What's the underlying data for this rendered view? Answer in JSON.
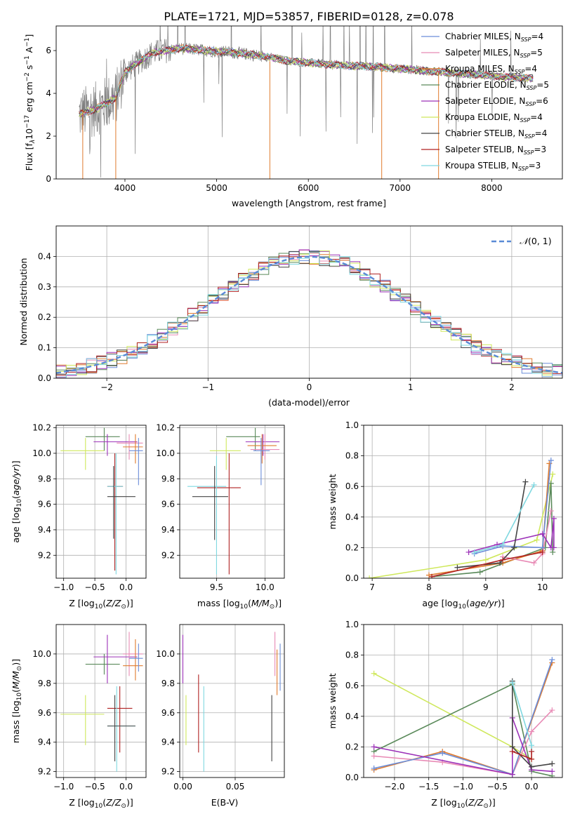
{
  "figure": {
    "title": "PLATE=1721, MJD=53857, FIBERID=0128, z=0.078"
  },
  "colors": {
    "Chabrier MILES": "#6a8dd9",
    "Salpeter MILES": "#e88ab5",
    "Kroupa MILES": "#e07b2e",
    "Chabrier ELODIE": "#5a8a5a",
    "Salpeter ELODIE": "#9c31b8",
    "Kroupa ELODIE": "#cfe85c",
    "Chabrier STELIB": "#444444",
    "Salpeter STELIB": "#b02222",
    "Kroupa STELIB": "#7fd8e0",
    "observed": "#808080"
  },
  "chart_data": [
    {
      "id": "spectrum",
      "type": "line",
      "xlabel": "wavelength [Angstrom, rest frame]",
      "ylabel": "Flux [f_λ 10^-17 erg cm^-2 s^-1 A^-1]",
      "xlim": [
        3250,
        8770
      ],
      "ylim": [
        0,
        7.15
      ],
      "xticks": [
        4000,
        5000,
        6000,
        7000,
        8000
      ],
      "yticks": [
        0,
        2,
        4,
        6
      ],
      "grid": false,
      "legend_position": "top-right",
      "legend": [
        "Chabrier MILES, N_SSP=4",
        "Salpeter MILES, N_SSP=5",
        "Kroupa MILES, N_SSP=4",
        "Chabrier ELODIE, N_SSP=5",
        "Salpeter ELODIE, N_SSP=6",
        "Kroupa ELODIE, N_SSP=4",
        "Chabrier STELIB, N_SSP=4",
        "Salpeter STELIB, N_SSP=3",
        "Kroupa STELIB, N_SSP=3"
      ],
      "continuum": {
        "x": [
          3500,
          3700,
          3900,
          4000,
          4300,
          4600,
          4900,
          5200,
          5500,
          5800,
          6100,
          6400,
          6700,
          7000,
          7300,
          7600,
          7900,
          8200,
          8450
        ],
        "y": [
          3.0,
          3.3,
          3.8,
          5.0,
          5.9,
          6.1,
          6.0,
          5.9,
          5.75,
          5.5,
          5.4,
          5.3,
          5.25,
          5.15,
          5.05,
          4.95,
          4.85,
          4.75,
          4.7
        ]
      }
    },
    {
      "id": "residuals",
      "type": "line",
      "xlabel": "(data-model)/error",
      "ylabel": "Normed distribution",
      "xlim": [
        -2.5,
        2.5
      ],
      "ylim": [
        0,
        0.5
      ],
      "xticks": [
        -2,
        -1,
        0,
        1,
        2
      ],
      "yticks": [
        0.0,
        0.1,
        0.2,
        0.3,
        0.4
      ],
      "grid": true,
      "legend_position": "top-right",
      "legend": [
        "N(0,1)"
      ],
      "bin_width": 0.1,
      "bins_from": -2.5
    },
    {
      "id": "age_vs_Z",
      "type": "scatter",
      "xlabel": "Z [log10(Z/Z_sun)]",
      "ylabel": "age [log10(age/yr)]",
      "xlim": [
        -1.12,
        0.32
      ],
      "ylim": [
        9.02,
        10.22
      ],
      "xticks": [
        -1.0,
        -0.5,
        0.0
      ],
      "yticks": [
        9.2,
        9.4,
        9.6,
        9.8,
        10.0,
        10.2
      ],
      "grid": true,
      "points": [
        {
          "c": "Kroupa ELODIE",
          "x": -0.65,
          "y": 10.02,
          "xlo": -1.05,
          "xhi": -0.35,
          "ylo": 9.87,
          "yhi": 10.12
        },
        {
          "c": "Chabrier ELODIE",
          "x": -0.35,
          "y": 10.13,
          "xlo": -0.65,
          "xhi": -0.1,
          "ylo": 10.02,
          "yhi": 10.2
        },
        {
          "c": "Salpeter ELODIE",
          "x": -0.3,
          "y": 10.09,
          "xlo": -0.52,
          "xhi": 0.18,
          "ylo": 9.98,
          "yhi": 10.15
        },
        {
          "c": "Salpeter MILES",
          "x": 0.05,
          "y": 10.08,
          "xlo": -0.15,
          "xhi": 0.27,
          "ylo": 9.95,
          "yhi": 10.15
        },
        {
          "c": "Kroupa MILES",
          "x": 0.15,
          "y": 10.05,
          "xlo": -0.05,
          "xhi": 0.27,
          "ylo": 9.92,
          "yhi": 10.15
        },
        {
          "c": "Chabrier MILES",
          "x": 0.2,
          "y": 10.02,
          "xlo": 0.05,
          "xhi": 0.27,
          "ylo": 9.75,
          "yhi": 10.12
        },
        {
          "c": "Salpeter STELIB",
          "x": -0.18,
          "y": 9.74,
          "xlo": -0.3,
          "xhi": -0.05,
          "ylo": 9.08,
          "yhi": 10.0
        },
        {
          "c": "Kroupa STELIB",
          "x": -0.16,
          "y": 9.74,
          "xlo": -0.3,
          "xhi": -0.05,
          "ylo": 9.05,
          "yhi": 10.0
        },
        {
          "c": "Chabrier STELIB",
          "x": -0.2,
          "y": 9.66,
          "xlo": -0.3,
          "xhi": 0.15,
          "ylo": 9.33,
          "yhi": 9.9
        }
      ]
    },
    {
      "id": "age_vs_mass",
      "type": "scatter",
      "xlabel": "mass [log10(M/M_sun)]",
      "ylabel": "",
      "xlim": [
        9.12,
        10.2
      ],
      "ylim": [
        9.02,
        10.22
      ],
      "xticks": [
        9.5,
        10.0
      ],
      "yticks": [
        9.2,
        9.4,
        9.6,
        9.8,
        10.0,
        10.2
      ],
      "grid": true,
      "points": [
        {
          "c": "Kroupa ELODIE",
          "x": 9.6,
          "y": 10.02,
          "xlo": 9.43,
          "xhi": 9.75,
          "ylo": 9.87,
          "yhi": 10.12
        },
        {
          "c": "Chabrier ELODIE",
          "x": 9.9,
          "y": 10.13,
          "xlo": 9.6,
          "xhi": 9.95,
          "ylo": 10.02,
          "yhi": 10.2
        },
        {
          "c": "Salpeter ELODIE",
          "x": 9.98,
          "y": 10.09,
          "xlo": 9.8,
          "xhi": 10.15,
          "ylo": 9.98,
          "yhi": 10.15
        },
        {
          "c": "Salpeter MILES",
          "x": 10.0,
          "y": 10.03,
          "xlo": 9.85,
          "xhi": 10.15,
          "ylo": 9.95,
          "yhi": 10.15
        },
        {
          "c": "Kroupa MILES",
          "x": 9.97,
          "y": 10.06,
          "xlo": 9.82,
          "xhi": 10.12,
          "ylo": 9.92,
          "yhi": 10.15
        },
        {
          "c": "Chabrier MILES",
          "x": 9.96,
          "y": 10.02,
          "xlo": 9.88,
          "xhi": 10.05,
          "ylo": 9.75,
          "yhi": 10.12
        },
        {
          "c": "Salpeter STELIB",
          "x": 9.63,
          "y": 9.73,
          "xlo": 9.3,
          "xhi": 9.75,
          "ylo": 9.05,
          "yhi": 10.0
        },
        {
          "c": "Kroupa STELIB",
          "x": 9.5,
          "y": 9.74,
          "xlo": 9.2,
          "xhi": 9.6,
          "ylo": 9.05,
          "yhi": 9.98
        },
        {
          "c": "Chabrier STELIB",
          "x": 9.48,
          "y": 9.66,
          "xlo": 9.25,
          "xhi": 9.62,
          "ylo": 9.32,
          "yhi": 9.9
        }
      ]
    },
    {
      "id": "weight_vs_age",
      "type": "line",
      "xlabel": "age [log10(age/yr)]",
      "ylabel": "mass weight",
      "xlim": [
        6.85,
        10.35
      ],
      "ylim": [
        0,
        1.0
      ],
      "xticks": [
        7,
        8,
        9,
        10
      ],
      "yticks": [
        0.0,
        0.2,
        0.4,
        0.6,
        0.8,
        1.0
      ],
      "grid": true,
      "series": [
        {
          "c": "Kroupa ELODIE",
          "x": [
            6.95,
            9.0,
            9.9,
            10.18
          ],
          "y": [
            0.0,
            0.12,
            0.25,
            0.68
          ]
        },
        {
          "c": "Chabrier ELODIE",
          "x": [
            8.05,
            8.9,
            10.05,
            10.15,
            10.18
          ],
          "y": [
            0.01,
            0.04,
            0.2,
            0.62,
            0.17
          ]
        },
        {
          "c": "Kroupa MILES",
          "x": [
            8.0,
            9.3,
            10.0,
            10.12
          ],
          "y": [
            0.02,
            0.1,
            0.18,
            0.75
          ]
        },
        {
          "c": "Salpeter MILES",
          "x": [
            9.3,
            9.85,
            10.0,
            10.15
          ],
          "y": [
            0.14,
            0.1,
            0.16,
            0.44
          ]
        },
        {
          "c": "Chabrier MILES",
          "x": [
            8.8,
            9.3,
            10.0,
            10.15
          ],
          "y": [
            0.16,
            0.21,
            0.2,
            0.77
          ]
        },
        {
          "c": "Salpeter ELODIE",
          "x": [
            8.7,
            9.2,
            10.0,
            10.15,
            10.2,
            10.2
          ],
          "y": [
            0.17,
            0.22,
            0.29,
            0.2,
            0.39,
            0.2
          ]
        },
        {
          "c": "Chabrier STELIB",
          "x": [
            8.5,
            9.25,
            9.5,
            9.7
          ],
          "y": [
            0.07,
            0.1,
            0.2,
            0.63
          ]
        },
        {
          "c": "Kroupa STELIB",
          "x": [
            8.8,
            9.3,
            9.85
          ],
          "y": [
            0.17,
            0.22,
            0.61
          ]
        },
        {
          "c": "Salpeter STELIB",
          "x": [
            8.05,
            9.3,
            10.0
          ],
          "y": [
            0.01,
            0.12,
            0.17
          ]
        }
      ]
    },
    {
      "id": "mass_vs_Z",
      "type": "scatter",
      "xlabel": "Z [log10(Z/Z_sun)]",
      "ylabel": "mass [log10(M/M_sun)]",
      "xlim": [
        -1.12,
        0.32
      ],
      "ylim": [
        9.16,
        10.2
      ],
      "xticks": [
        -1.0,
        -0.5,
        0.0
      ],
      "yticks": [
        9.2,
        9.4,
        9.6,
        9.8,
        10.0
      ],
      "grid": true,
      "points": [
        {
          "c": "Kroupa ELODIE",
          "x": -0.65,
          "y": 9.59,
          "xlo": -1.05,
          "xhi": -0.35,
          "ylo": 9.38,
          "yhi": 9.72
        },
        {
          "c": "Chabrier ELODIE",
          "x": -0.35,
          "y": 9.93,
          "xlo": -0.65,
          "xhi": -0.1,
          "ylo": 9.86,
          "yhi": 10.0
        },
        {
          "c": "Salpeter ELODIE",
          "x": -0.3,
          "y": 9.98,
          "xlo": -0.52,
          "xhi": 0.18,
          "ylo": 9.8,
          "yhi": 10.13
        },
        {
          "c": "Salpeter MILES",
          "x": 0.05,
          "y": 10.0,
          "xlo": -0.05,
          "xhi": 0.27,
          "ylo": 9.85,
          "yhi": 10.15
        },
        {
          "c": "Kroupa MILES",
          "x": 0.15,
          "y": 9.92,
          "xlo": -0.05,
          "xhi": 0.27,
          "ylo": 9.82,
          "yhi": 10.1
        },
        {
          "c": "Chabrier MILES",
          "x": 0.2,
          "y": 9.97,
          "xlo": 0.05,
          "xhi": 0.27,
          "ylo": 9.88,
          "yhi": 10.07
        },
        {
          "c": "Salpeter STELIB",
          "x": -0.1,
          "y": 9.63,
          "xlo": -0.3,
          "xhi": 0.1,
          "ylo": 9.33,
          "yhi": 9.78
        },
        {
          "c": "Kroupa STELIB",
          "x": -0.15,
          "y": 9.51,
          "xlo": -0.3,
          "xhi": 0.15,
          "ylo": 9.2,
          "yhi": 9.78
        },
        {
          "c": "Chabrier STELIB",
          "x": -0.18,
          "y": 9.51,
          "xlo": -0.3,
          "xhi": 0.15,
          "ylo": 9.27,
          "yhi": 9.72
        }
      ]
    },
    {
      "id": "mass_vs_ebv",
      "type": "scatter",
      "xlabel": "E(B-V)",
      "ylabel": "",
      "xlim": [
        -0.003,
        0.097
      ],
      "ylim": [
        9.16,
        10.2
      ],
      "xticks": [
        0.0,
        0.05
      ],
      "yticks": [
        9.2,
        9.4,
        9.6,
        9.8,
        10.0
      ],
      "grid": true,
      "points": [
        {
          "c": "Salpeter ELODIE",
          "x": 0.0,
          "ylo": 9.8,
          "yhi": 10.13
        },
        {
          "c": "Kroupa ELODIE",
          "x": 0.003,
          "ylo": 9.38,
          "yhi": 9.72
        },
        {
          "c": "Salpeter STELIB",
          "x": 0.015,
          "ylo": 9.33,
          "yhi": 9.86
        },
        {
          "c": "Kroupa STELIB",
          "x": 0.02,
          "ylo": 9.2,
          "yhi": 9.78
        },
        {
          "c": "Chabrier STELIB",
          "x": 0.085,
          "ylo": 9.27,
          "yhi": 9.72
        },
        {
          "c": "Salpeter MILES",
          "x": 0.088,
          "ylo": 9.85,
          "yhi": 10.15
        },
        {
          "c": "Kroupa MILES",
          "x": 0.09,
          "ylo": 9.72,
          "yhi": 10.03
        },
        {
          "c": "Chabrier MILES",
          "x": 0.093,
          "ylo": 9.75,
          "yhi": 10.07
        }
      ]
    },
    {
      "id": "weight_vs_Z",
      "type": "line",
      "xlabel": "Z [log10(Z/Z_sun)]",
      "ylabel": "mass weight",
      "xlim": [
        -2.45,
        0.45
      ],
      "ylim": [
        0,
        1.0
      ],
      "xticks": [
        -2.0,
        -1.5,
        -1.0,
        -0.5,
        0.0
      ],
      "yticks": [
        0.0,
        0.2,
        0.4,
        0.6,
        0.8,
        1.0
      ],
      "grid": true,
      "series": [
        {
          "c": "Kroupa ELODIE",
          "x": [
            -2.3,
            -0.28,
            0.0
          ],
          "y": [
            0.68,
            0.2,
            0.12
          ]
        },
        {
          "c": "Chabrier ELODIE",
          "x": [
            -2.3,
            -0.28,
            0.0,
            0.3
          ],
          "y": [
            0.17,
            0.61,
            0.04,
            0.01
          ]
        },
        {
          "c": "Salpeter MILES",
          "x": [
            -2.3,
            -1.3,
            -0.28,
            0.0,
            0.3
          ],
          "y": [
            0.14,
            0.1,
            0.02,
            0.3,
            0.44
          ]
        },
        {
          "c": "Kroupa MILES",
          "x": [
            -2.3,
            -1.3,
            -0.28,
            0.3
          ],
          "y": [
            0.05,
            0.17,
            0.02,
            0.75
          ]
        },
        {
          "c": "Chabrier MILES",
          "x": [
            -2.3,
            -1.3,
            -0.28,
            0.3
          ],
          "y": [
            0.06,
            0.16,
            0.02,
            0.77
          ]
        },
        {
          "c": "Salpeter ELODIE",
          "x": [
            -2.3,
            -0.28,
            -0.28,
            0.0,
            0.3
          ],
          "y": [
            0.2,
            0.02,
            0.39,
            0.05,
            0.04
          ]
        },
        {
          "c": "Chabrier STELIB",
          "x": [
            -0.28,
            -0.28,
            0.0,
            0.3
          ],
          "y": [
            0.63,
            0.2,
            0.07,
            0.09
          ]
        },
        {
          "c": "Kroupa STELIB",
          "x": [
            -0.28,
            0.0,
            0.0
          ],
          "y": [
            0.62,
            0.21,
            0.17
          ]
        },
        {
          "c": "Salpeter STELIB",
          "x": [
            -0.28,
            0.0,
            0.0
          ],
          "y": [
            0.17,
            0.12,
            0.17
          ]
        }
      ]
    }
  ]
}
